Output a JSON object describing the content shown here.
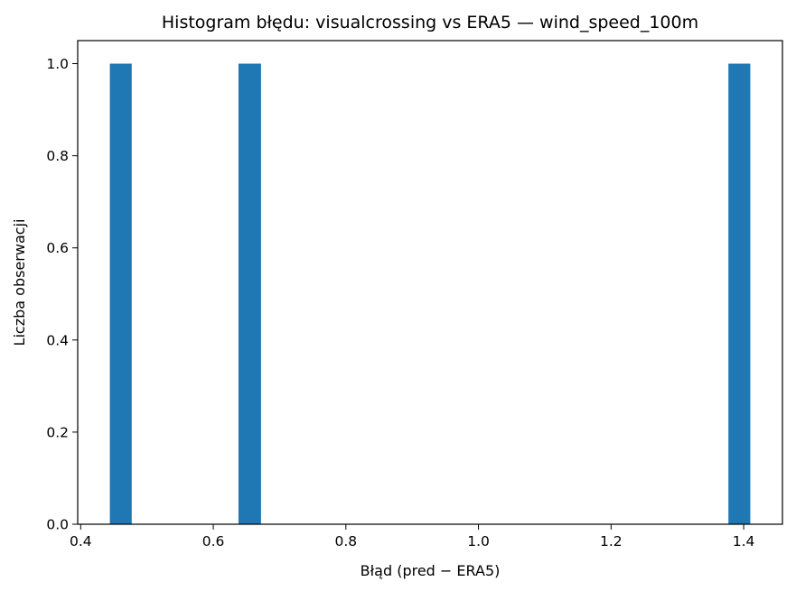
{
  "chart_data": {
    "type": "bar",
    "title": "Histogram błędu: visualcrossing vs ERA5 — wind_speed_100m",
    "xlabel": "Błąd (pred − ERA5)",
    "ylabel": "Liczba obserwacji",
    "xlim": [
      0.3955,
      1.4585
    ],
    "ylim": [
      0,
      1.05
    ],
    "x_ticks": [
      0.4,
      0.6,
      0.8,
      1.0,
      1.2,
      1.4
    ],
    "x_tick_labels": [
      "0.4",
      "0.6",
      "0.8",
      "1.0",
      "1.2",
      "1.4"
    ],
    "y_ticks": [
      0.0,
      0.2,
      0.4,
      0.6,
      0.8,
      1.0
    ],
    "y_tick_labels": [
      "0.0",
      "0.2",
      "0.4",
      "0.6",
      "0.8",
      "1.0"
    ],
    "bins": [
      {
        "x_start": 0.444,
        "x_end": 0.477,
        "count": 1
      },
      {
        "x_start": 0.638,
        "x_end": 0.672,
        "count": 1
      },
      {
        "x_start": 1.377,
        "x_end": 1.41,
        "count": 1
      }
    ],
    "bar_color": "#1f77b4",
    "grid": false,
    "legend": "none"
  }
}
